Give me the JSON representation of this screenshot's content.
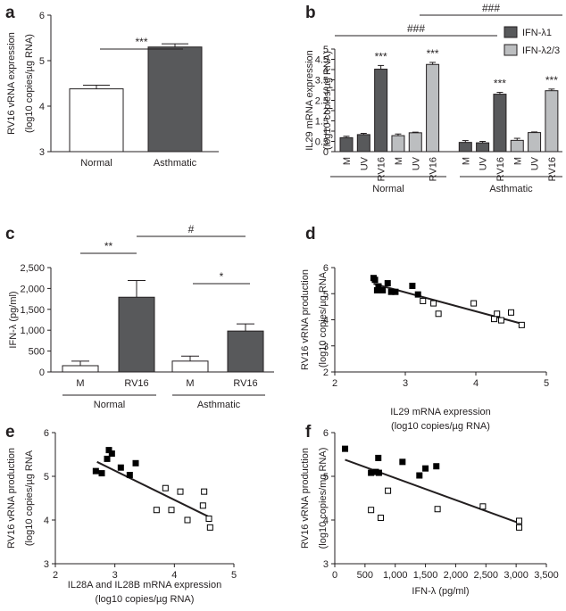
{
  "colors": {
    "dark": "#58595b",
    "light": "#bcbec0",
    "white": "#ffffff",
    "filled_marker": "#000000",
    "line": "#231f20"
  },
  "chart_data": [
    {
      "id": "a",
      "panel_label": "a",
      "type": "bar",
      "categories": [
        "Normal",
        "Asthmatic"
      ],
      "values": [
        4.38,
        5.3
      ],
      "errors": [
        0.08,
        0.07
      ],
      "fills": [
        "white",
        "dark"
      ],
      "ylim": [
        3,
        6
      ],
      "yticks": [
        "3",
        "4",
        "5",
        "6"
      ],
      "ylabel_lines": [
        "RV16 vRNA expression",
        "(log10 copies/µg RNA)"
      ],
      "annotations": [
        {
          "text": "***",
          "from": 0,
          "to": 1
        }
      ]
    },
    {
      "id": "b",
      "panel_label": "b",
      "type": "bar",
      "categories": [
        "M",
        "UV",
        "RV16",
        "M",
        "UV",
        "RV16",
        "M",
        "UV",
        "RV16",
        "M",
        "UV",
        "RV16"
      ],
      "values": [
        0.68,
        0.83,
        4.02,
        0.78,
        0.92,
        4.25,
        0.45,
        0.43,
        2.8,
        0.55,
        0.93,
        2.97
      ],
      "errors": [
        0.07,
        0.06,
        0.18,
        0.08,
        0.03,
        0.1,
        0.09,
        0.07,
        0.09,
        0.1,
        0.03,
        0.08
      ],
      "fills": [
        "dark",
        "dark",
        "dark",
        "light",
        "light",
        "light",
        "dark",
        "dark",
        "dark",
        "light",
        "light",
        "light"
      ],
      "ylim": [
        0,
        5
      ],
      "yticks": [
        "0",
        "0.5",
        "1",
        "1.5",
        "2",
        "2.5",
        "3",
        "3.5",
        "4",
        "4.5",
        "5"
      ],
      "ylabel_lines": [
        "IL29 mRNA expression",
        "(log10 copies/µg RNA)"
      ],
      "groups": [
        "Normal",
        "Asthmatic"
      ],
      "legend": [
        "IFN-λ1",
        "IFN-λ2/3"
      ],
      "stars": [
        {
          "bar": 2,
          "text": "***"
        },
        {
          "bar": 5,
          "text": "***"
        },
        {
          "bar": 8,
          "text": "***"
        },
        {
          "bar": 11,
          "text": "***"
        }
      ],
      "hash_annotations": [
        {
          "text": "###",
          "from": 2,
          "to": 8
        },
        {
          "text": "###",
          "from": 5,
          "to": 11
        }
      ]
    },
    {
      "id": "c",
      "panel_label": "c",
      "type": "bar",
      "categories": [
        "M",
        "RV16",
        "M",
        "RV16"
      ],
      "values": [
        150,
        1790,
        260,
        980
      ],
      "errors": [
        110,
        400,
        120,
        170
      ],
      "fills": [
        "white",
        "dark",
        "white",
        "dark"
      ],
      "ylim": [
        0,
        2500
      ],
      "yticks": [
        "0",
        "500",
        "1,000",
        "1,500",
        "2,000",
        "2,500"
      ],
      "ylabel_lines": [
        "IFN-λ (pg/ml)"
      ],
      "groups": [
        "Normal",
        "Asthmatic"
      ],
      "annotations": [
        {
          "text": "**",
          "from": 0,
          "to": 1
        },
        {
          "text": "#",
          "from": 1,
          "to": 3
        },
        {
          "text": "*",
          "from": 2,
          "to": 3
        }
      ]
    },
    {
      "id": "d",
      "panel_label": "d",
      "type": "scatter",
      "xlim": [
        2,
        5
      ],
      "ylim": [
        2,
        6
      ],
      "xticks": [
        "2",
        "3",
        "4",
        "5"
      ],
      "yticks": [
        "2",
        "3",
        "4",
        "5",
        "6"
      ],
      "xlabel_lines": [
        "IL29 mRNA expression",
        "(log10 copies/µg RNA)"
      ],
      "ylabel_lines": [
        "RV16 vRNA production",
        "(log10 copies/µg RNA"
      ],
      "filled_points": [
        [
          2.55,
          5.6
        ],
        [
          2.57,
          5.53
        ],
        [
          2.6,
          5.13
        ],
        [
          2.62,
          5.28
        ],
        [
          2.68,
          5.13
        ],
        [
          2.75,
          5.4
        ],
        [
          2.8,
          5.07
        ],
        [
          2.86,
          5.07
        ],
        [
          3.1,
          5.3
        ],
        [
          3.18,
          4.97
        ]
      ],
      "open_points": [
        [
          3.25,
          4.72
        ],
        [
          3.4,
          4.63
        ],
        [
          3.47,
          4.23
        ],
        [
          3.97,
          4.63
        ],
        [
          4.26,
          4.03
        ],
        [
          4.3,
          4.23
        ],
        [
          4.36,
          3.98
        ],
        [
          4.5,
          4.28
        ],
        [
          4.65,
          3.8
        ]
      ],
      "fit": [
        [
          2.55,
          5.38
        ],
        [
          4.65,
          3.85
        ]
      ]
    },
    {
      "id": "e",
      "panel_label": "e",
      "type": "scatter",
      "xlim": [
        2,
        5
      ],
      "ylim": [
        3,
        6
      ],
      "xticks": [
        "2",
        "3",
        "4",
        "5"
      ],
      "yticks": [
        "3",
        "4",
        "5",
        "6"
      ],
      "xlabel_lines": [
        "IL28A and IL28B mRNA expression",
        "(log10 copies/µg RNA)"
      ],
      "ylabel_lines": [
        "RV16 vRNA production",
        "(log10 copies/µg RNA"
      ],
      "filled_points": [
        [
          2.68,
          5.12
        ],
        [
          2.78,
          5.07
        ],
        [
          2.87,
          5.4
        ],
        [
          2.9,
          5.6
        ],
        [
          2.95,
          5.52
        ],
        [
          3.1,
          5.2
        ],
        [
          3.25,
          5.03
        ],
        [
          3.35,
          5.3
        ]
      ],
      "open_points": [
        [
          3.7,
          4.23
        ],
        [
          3.85,
          4.73
        ],
        [
          3.95,
          4.23
        ],
        [
          4.1,
          4.65
        ],
        [
          4.22,
          4.0
        ],
        [
          4.48,
          4.33
        ],
        [
          4.5,
          4.65
        ],
        [
          4.58,
          4.03
        ],
        [
          4.6,
          3.83
        ]
      ],
      "fit": [
        [
          2.7,
          5.33
        ],
        [
          4.6,
          4.06
        ]
      ]
    },
    {
      "id": "f",
      "panel_label": "f",
      "type": "scatter",
      "xlim": [
        0,
        3500
      ],
      "ylim": [
        3,
        6
      ],
      "xticks": [
        "0",
        "500",
        "1,000",
        "1,500",
        "2,000",
        "2,500",
        "3,000",
        "3,500"
      ],
      "yticks": [
        "3",
        "4",
        "5",
        "6"
      ],
      "xlabel_lines": [
        "IFN-λ (pg/ml)"
      ],
      "ylabel_lines": [
        "RV16 vRNA production",
        "(log10 copies/mg RNA)"
      ],
      "filled_points": [
        [
          170,
          5.63
        ],
        [
          600,
          5.08
        ],
        [
          680,
          5.1
        ],
        [
          720,
          5.42
        ],
        [
          1120,
          5.33
        ],
        [
          1400,
          5.02
        ],
        [
          1500,
          5.18
        ],
        [
          1680,
          5.23
        ],
        [
          730,
          5.08
        ]
      ],
      "open_points": [
        [
          600,
          4.23
        ],
        [
          760,
          4.05
        ],
        [
          880,
          4.67
        ],
        [
          1700,
          4.25
        ],
        [
          2450,
          4.31
        ],
        [
          3050,
          3.98
        ],
        [
          3050,
          3.83
        ]
      ],
      "fit": [
        [
          170,
          5.38
        ],
        [
          3050,
          3.93
        ]
      ]
    }
  ]
}
